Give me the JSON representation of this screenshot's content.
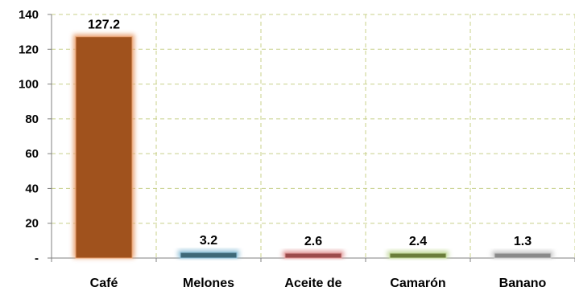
{
  "chart_data": {
    "type": "bar",
    "title": "",
    "xlabel": "",
    "ylabel": "",
    "categories": [
      "Café",
      "Melones",
      "Aceite de",
      "Camarón",
      "Banano"
    ],
    "values": [
      127.2,
      3.2,
      2.6,
      2.4,
      1.3
    ],
    "data_labels": [
      "127.2",
      "3.2",
      "2.6",
      "2.4",
      "1.3"
    ],
    "ylim": [
      0,
      140
    ],
    "yticks": [
      0,
      20,
      40,
      60,
      80,
      100,
      120,
      140
    ],
    "ytick_labels": [
      "-",
      "20",
      "40",
      "60",
      "80",
      "100",
      "120",
      "140"
    ],
    "grid": true,
    "legend": "none",
    "colors": {
      "bar_fills": [
        "#a0521d",
        "#3d6878",
        "#9b4b4b",
        "#6b7d3a",
        "#8a8a8a"
      ],
      "bar_glows": [
        "#e8a070",
        "#8fc0d8",
        "#e09898",
        "#c2d89a",
        "#c8c8c8"
      ],
      "grid": "#c8d08a",
      "axis": "#808080"
    }
  }
}
